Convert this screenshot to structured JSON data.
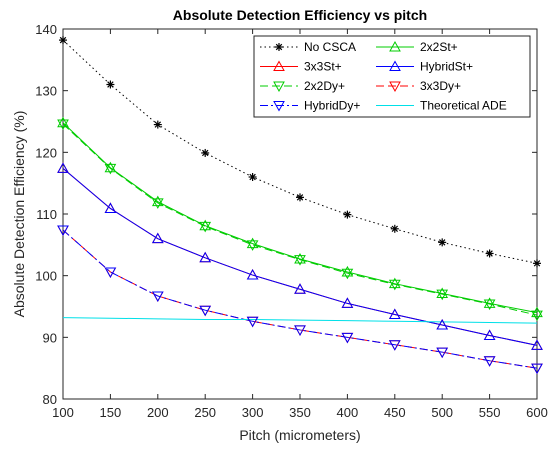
{
  "chart_data": {
    "type": "line",
    "title": "Absolute Detection Efficiency vs pitch",
    "xlabel": "Pitch (micrometers)",
    "ylabel": "Absolute Detection Efficiency (%)",
    "xlim": [
      100,
      600
    ],
    "ylim": [
      80,
      140
    ],
    "x_ticks": [
      100,
      150,
      200,
      250,
      300,
      350,
      400,
      450,
      500,
      550,
      600
    ],
    "y_ticks": [
      80,
      90,
      100,
      110,
      120,
      130,
      140
    ],
    "grid": false,
    "legend_position": "top-right",
    "x": [
      100,
      150,
      200,
      250,
      300,
      350,
      400,
      450,
      500,
      550,
      600
    ],
    "series": [
      {
        "name": "No CSCA",
        "color": "#000000",
        "dash": "1.5,3",
        "marker": "star",
        "markerColor": "#000000",
        "values": [
          138.2,
          131.0,
          124.5,
          119.9,
          116.0,
          112.7,
          109.9,
          107.6,
          105.4,
          103.6,
          102.0
        ]
      },
      {
        "name": "2x2St+",
        "color": "#00cc00",
        "dash": "",
        "marker": "triangle-up",
        "markerColor": "#00cc00",
        "values": [
          124.8,
          117.5,
          112.0,
          108.1,
          105.2,
          102.7,
          100.6,
          98.7,
          97.1,
          95.5,
          94.0
        ]
      },
      {
        "name": "3x3St+",
        "color": "#ff0000",
        "dash": "",
        "marker": "triangle-up",
        "markerColor": "#ff0000",
        "values": [
          117.4,
          110.9,
          106.0,
          102.9,
          100.1,
          97.8,
          95.5,
          93.7,
          92.0,
          90.3,
          88.7
        ]
      },
      {
        "name": "HybridSt+",
        "color": "#0000ff",
        "dash": "",
        "marker": "triangle-up",
        "markerColor": "#0000ff",
        "values": [
          117.4,
          110.9,
          106.0,
          102.9,
          100.1,
          97.8,
          95.5,
          93.7,
          92.0,
          90.3,
          88.7
        ]
      },
      {
        "name": "2x2Dy+",
        "color": "#00cc00",
        "dash": "8,4",
        "marker": "triangle-down",
        "markerColor": "#00cc00",
        "values": [
          124.6,
          117.4,
          111.8,
          108.0,
          105.0,
          102.6,
          100.4,
          98.6,
          97.0,
          95.4,
          93.6
        ]
      },
      {
        "name": "3x3Dy+",
        "color": "#ff0000",
        "dash": "8,4",
        "marker": "triangle-down",
        "markerColor": "#ff0000",
        "values": [
          107.4,
          100.6,
          96.7,
          94.4,
          92.6,
          91.2,
          90.0,
          88.8,
          87.6,
          86.2,
          85.0
        ]
      },
      {
        "name": "HybridDy+",
        "color": "#0000ff",
        "dash": "8,3,2,3",
        "marker": "triangle-down",
        "markerColor": "#0000ff",
        "values": [
          107.4,
          100.6,
          96.7,
          94.4,
          92.6,
          91.2,
          90.0,
          88.8,
          87.6,
          86.2,
          85.0
        ]
      },
      {
        "name": "Theoretical ADE",
        "color": "#00e0e8",
        "dash": "",
        "marker": "none",
        "markerColor": "#00e0e8",
        "values": [
          93.2,
          93.1,
          93.0,
          92.9,
          92.9,
          92.8,
          92.7,
          92.6,
          92.5,
          92.4,
          92.3
        ]
      }
    ]
  }
}
